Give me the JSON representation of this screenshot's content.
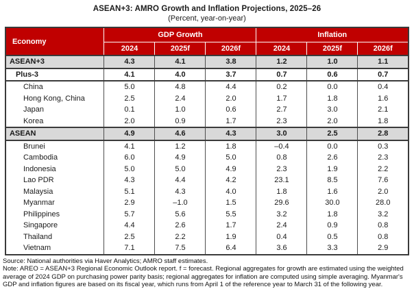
{
  "title": "ASEAN+3: AMRO Growth and Inflation Projections, 2025–26",
  "subtitle": "(Percent, year-on-year)",
  "colors": {
    "header_bg": "#C00000",
    "header_text": "#FFFFFF",
    "aggregate_row_bg": "#D9D9D9",
    "border_dark": "#3A3A3A",
    "body_text": "#1A1A1A"
  },
  "table": {
    "economy_header": "Economy",
    "group_headers": [
      "GDP Growth",
      "Inflation"
    ],
    "year_headers": [
      "2024",
      "2025f",
      "2026f",
      "2024",
      "2025f",
      "2026f"
    ],
    "rows": [
      {
        "economy": "ASEAN+3",
        "style": "aggregate",
        "indent": 0,
        "values": [
          "4.3",
          "4.1",
          "3.8",
          "1.2",
          "1.0",
          "1.1"
        ]
      },
      {
        "economy": "Plus-3",
        "style": "subaggregate",
        "indent": 1,
        "values": [
          "4.1",
          "4.0",
          "3.7",
          "0.7",
          "0.6",
          "0.7"
        ]
      },
      {
        "economy": "China",
        "style": "member",
        "indent": 2,
        "values": [
          "5.0",
          "4.8",
          "4.4",
          "0.2",
          "0.0",
          "0.4"
        ]
      },
      {
        "economy": "Hong Kong, China",
        "style": "member",
        "indent": 2,
        "values": [
          "2.5",
          "2.4",
          "2.0",
          "1.7",
          "1.8",
          "1.6"
        ]
      },
      {
        "economy": "Japan",
        "style": "member",
        "indent": 2,
        "values": [
          "0.1",
          "1.0",
          "0.6",
          "2.7",
          "3.0",
          "2.1"
        ]
      },
      {
        "economy": "Korea",
        "style": "member",
        "indent": 2,
        "values": [
          "2.0",
          "0.9",
          "1.7",
          "2.3",
          "2.0",
          "1.8"
        ]
      },
      {
        "economy": "ASEAN",
        "style": "aggregate",
        "indent": 0,
        "values": [
          "4.9",
          "4.6",
          "4.3",
          "3.0",
          "2.5",
          "2.8"
        ]
      },
      {
        "economy": "Brunei",
        "style": "member",
        "indent": 2,
        "values": [
          "4.1",
          "1.2",
          "1.8",
          "–0.4",
          "0.0",
          "0.3"
        ]
      },
      {
        "economy": "Cambodia",
        "style": "member",
        "indent": 2,
        "values": [
          "6.0",
          "4.9",
          "5.0",
          "0.8",
          "2.6",
          "2.3"
        ]
      },
      {
        "economy": "Indonesia",
        "style": "member",
        "indent": 2,
        "values": [
          "5.0",
          "5.0",
          "4.9",
          "2.3",
          "1.9",
          "2.2"
        ]
      },
      {
        "economy": "Lao PDR",
        "style": "member",
        "indent": 2,
        "values": [
          "4.3",
          "4.4",
          "4.2",
          "23.1",
          "8.5",
          "7.6"
        ]
      },
      {
        "economy": "Malaysia",
        "style": "member",
        "indent": 2,
        "values": [
          "5.1",
          "4.3",
          "4.0",
          "1.8",
          "1.6",
          "2.0"
        ]
      },
      {
        "economy": "Myanmar",
        "style": "member",
        "indent": 2,
        "values": [
          "2.9",
          "–1.0",
          "1.5",
          "29.6",
          "30.0",
          "28.0"
        ]
      },
      {
        "economy": "Philippines",
        "style": "member",
        "indent": 2,
        "values": [
          "5.7",
          "5.6",
          "5.5",
          "3.2",
          "1.8",
          "3.2"
        ]
      },
      {
        "economy": "Singapore",
        "style": "member",
        "indent": 2,
        "values": [
          "4.4",
          "2.6",
          "1.7",
          "2.4",
          "0.9",
          "0.8"
        ]
      },
      {
        "economy": "Thailand",
        "style": "member",
        "indent": 2,
        "values": [
          "2.5",
          "2.2",
          "1.9",
          "0.4",
          "0.5",
          "0.8"
        ]
      },
      {
        "economy": "Vietnam",
        "style": "member",
        "indent": 2,
        "values": [
          "7.1",
          "7.5",
          "6.4",
          "3.6",
          "3.3",
          "2.9"
        ]
      }
    ]
  },
  "footnotes": {
    "source": "Source: National authorities via Haver Analytics; AMRO staff estimates.",
    "note": "Note: AREO = ASEAN+3 Regional Economic Outlook report. f = forecast. Regional aggregates for growth are estimated using the weighted average of 2024 GDP on purchasing power parity basis; regional aggregates for inflation are computed using simple averaging. Myanmar's GDP and inflation figures are based on its fiscal year, which runs from April 1 of the reference year to March 31 of the following year."
  }
}
